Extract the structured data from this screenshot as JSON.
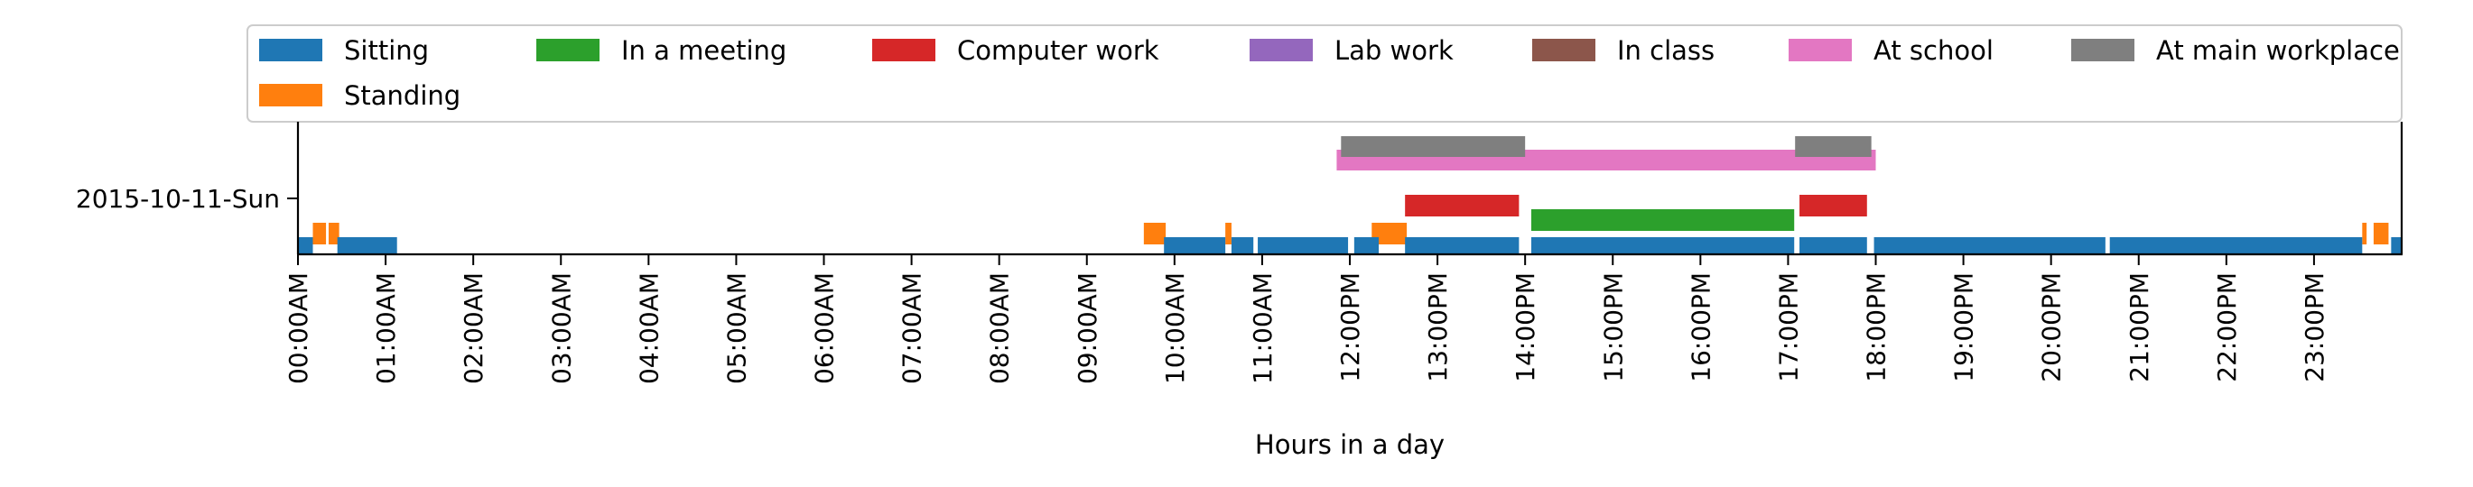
{
  "chart_data": {
    "type": "timeline",
    "title": "",
    "xlabel": "Hours in a day",
    "ylabel": "",
    "xlim": [
      0,
      24
    ],
    "x_ticks": [
      {
        "hour": 0,
        "label": "00:00AM"
      },
      {
        "hour": 1,
        "label": "01:00AM"
      },
      {
        "hour": 2,
        "label": "02:00AM"
      },
      {
        "hour": 3,
        "label": "03:00AM"
      },
      {
        "hour": 4,
        "label": "04:00AM"
      },
      {
        "hour": 5,
        "label": "05:00AM"
      },
      {
        "hour": 6,
        "label": "06:00AM"
      },
      {
        "hour": 7,
        "label": "07:00AM"
      },
      {
        "hour": 8,
        "label": "08:00AM"
      },
      {
        "hour": 9,
        "label": "09:00AM"
      },
      {
        "hour": 10,
        "label": "10:00AM"
      },
      {
        "hour": 11,
        "label": "11:00AM"
      },
      {
        "hour": 12,
        "label": "12:00PM"
      },
      {
        "hour": 13,
        "label": "13:00PM"
      },
      {
        "hour": 14,
        "label": "14:00PM"
      },
      {
        "hour": 15,
        "label": "15:00PM"
      },
      {
        "hour": 16,
        "label": "16:00PM"
      },
      {
        "hour": 17,
        "label": "17:00PM"
      },
      {
        "hour": 18,
        "label": "18:00PM"
      },
      {
        "hour": 19,
        "label": "19:00PM"
      },
      {
        "hour": 20,
        "label": "20:00PM"
      },
      {
        "hour": 21,
        "label": "21:00PM"
      },
      {
        "hour": 22,
        "label": "22:00PM"
      },
      {
        "hour": 23,
        "label": "23:00PM"
      }
    ],
    "y_ticks": [
      {
        "label": "2015-10-11-Sun"
      }
    ],
    "grid": false,
    "legend_position": "top",
    "series": [
      {
        "name": "Sitting",
        "color": "#1f77b4",
        "intervals": [
          [
            0.0,
            0.17
          ],
          [
            0.45,
            1.13
          ],
          [
            9.88,
            10.58
          ],
          [
            10.65,
            10.9
          ],
          [
            10.95,
            11.98
          ],
          [
            12.05,
            12.33
          ],
          [
            12.63,
            13.93
          ],
          [
            14.07,
            17.07
          ],
          [
            17.13,
            17.9
          ],
          [
            17.98,
            20.62
          ],
          [
            20.67,
            23.55
          ],
          [
            23.88,
            24.0
          ]
        ]
      },
      {
        "name": "In a meeting",
        "color": "#2ca02c",
        "intervals": [
          [
            14.07,
            17.07
          ]
        ]
      },
      {
        "name": "Computer work",
        "color": "#d62728",
        "intervals": [
          [
            12.63,
            13.93
          ],
          [
            17.13,
            17.9
          ]
        ]
      },
      {
        "name": "Lab work",
        "color": "#9467bd",
        "intervals": []
      },
      {
        "name": "In class",
        "color": "#8c564b",
        "intervals": []
      },
      {
        "name": "At school",
        "color": "#e377c2",
        "intervals": [
          [
            11.85,
            18.0
          ]
        ]
      },
      {
        "name": "At main workplace",
        "color": "#7f7f7f",
        "intervals": [
          [
            11.9,
            14.0
          ],
          [
            17.08,
            17.95
          ]
        ]
      },
      {
        "name": "Standing",
        "color": "#ff7f0e",
        "intervals": [
          [
            0.17,
            0.32
          ],
          [
            0.35,
            0.47
          ],
          [
            9.65,
            9.9
          ],
          [
            10.58,
            10.65
          ],
          [
            12.25,
            12.65
          ],
          [
            23.55,
            23.6
          ],
          [
            23.68,
            23.85
          ]
        ]
      }
    ]
  }
}
